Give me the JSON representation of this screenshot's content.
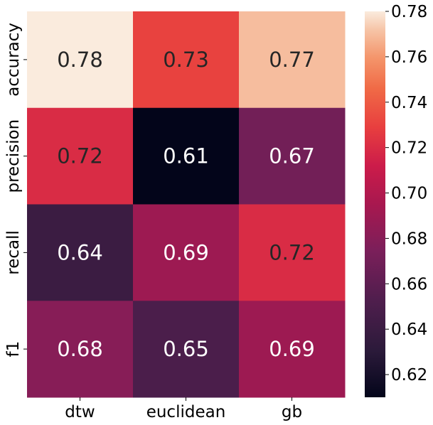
{
  "chart_data": {
    "type": "heatmap",
    "rows": [
      "accuracy",
      "precision",
      "recall",
      "f1"
    ],
    "columns": [
      "dtw",
      "euclidean",
      "gb"
    ],
    "values": [
      [
        0.78,
        0.73,
        0.77
      ],
      [
        0.72,
        0.61,
        0.67
      ],
      [
        0.64,
        0.69,
        0.72
      ],
      [
        0.68,
        0.65,
        0.69
      ]
    ],
    "cell_labels": [
      [
        "0.78",
        "0.73",
        "0.77"
      ],
      [
        "0.72",
        "0.61",
        "0.67"
      ],
      [
        "0.64",
        "0.69",
        "0.72"
      ],
      [
        "0.68",
        "0.65",
        "0.69"
      ]
    ],
    "colormap": "rocket",
    "colorbar": {
      "range": [
        0.61,
        0.78
      ],
      "ticks": [
        0.62,
        0.64,
        0.66,
        0.68,
        0.7,
        0.72,
        0.74,
        0.76,
        0.78
      ],
      "tick_labels": [
        "0.62",
        "0.64",
        "0.66",
        "0.68",
        "0.70",
        "0.72",
        "0.74",
        "0.76",
        "0.78"
      ]
    },
    "colormap_stops": [
      [
        0.0,
        "#03051a"
      ],
      [
        0.12,
        "#2b1a3a"
      ],
      [
        0.25,
        "#4f1e4d"
      ],
      [
        0.38,
        "#7b1f5a"
      ],
      [
        0.5,
        "#a8184f"
      ],
      [
        0.6,
        "#cc1c4a"
      ],
      [
        0.7,
        "#e83f3f"
      ],
      [
        0.8,
        "#f06a46"
      ],
      [
        0.88,
        "#f4956b"
      ],
      [
        0.95,
        "#f6c3a5"
      ],
      [
        1.0,
        "#faebdd"
      ]
    ]
  }
}
